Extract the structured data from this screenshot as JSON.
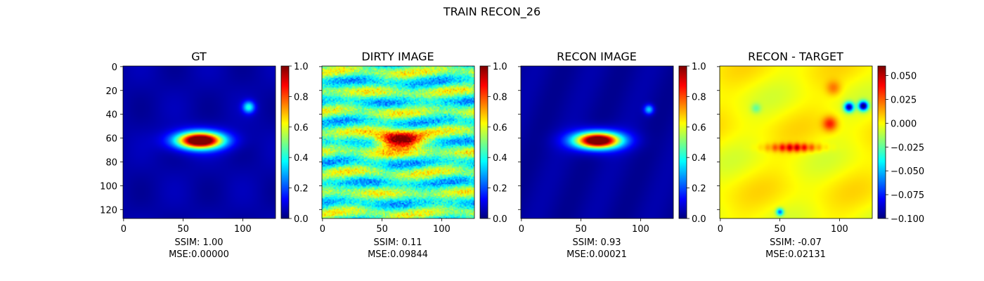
{
  "figure": {
    "suptitle": "TRAIN RECON_26"
  },
  "chart_data": [
    {
      "type": "heatmap",
      "title": "GT",
      "colormap": "jet",
      "image_size": [
        128,
        128
      ],
      "x_ticks": [
        0,
        50,
        100
      ],
      "y_ticks": [
        0,
        20,
        40,
        60,
        80,
        100,
        120
      ],
      "colorbar": {
        "range": [
          0.0,
          1.0
        ],
        "ticks": [
          "0.0",
          "0.2",
          "0.4",
          "0.6",
          "0.8",
          "1.0"
        ]
      },
      "caption_ssim": "SSIM: 1.00",
      "caption_mse": "MSE:0.00000",
      "content": "ground_truth"
    },
    {
      "type": "heatmap",
      "title": "DIRTY IMAGE",
      "colormap": "jet",
      "image_size": [
        128,
        128
      ],
      "x_ticks": [
        0,
        50,
        100
      ],
      "colorbar": {
        "range": [
          0.0,
          1.0
        ],
        "ticks": [
          "0.0",
          "0.2",
          "0.4",
          "0.6",
          "0.8",
          "1.0"
        ]
      },
      "caption_ssim": "SSIM: 0.11",
      "caption_mse": "MSE:0.09844",
      "content": "dirty"
    },
    {
      "type": "heatmap",
      "title": "RECON IMAGE",
      "colormap": "jet",
      "image_size": [
        128,
        128
      ],
      "x_ticks": [
        0,
        50,
        100
      ],
      "colorbar": {
        "range": [
          0.0,
          1.0
        ],
        "ticks": [
          "0.0",
          "0.2",
          "0.4",
          "0.6",
          "0.8",
          "1.0"
        ]
      },
      "caption_ssim": "SSIM: 0.93",
      "caption_mse": "MSE:0.00021",
      "content": "reconstruction"
    },
    {
      "type": "heatmap",
      "title": "RECON - TARGET",
      "colormap": "jet",
      "image_size": [
        128,
        128
      ],
      "x_ticks": [
        0,
        50,
        100
      ],
      "colorbar": {
        "range": [
          -0.1,
          0.06
        ],
        "ticks": [
          "−0.100",
          "−0.075",
          "−0.050",
          "−0.025",
          "0.000",
          "0.025",
          "0.050"
        ]
      },
      "caption_ssim": "SSIM: -0.07",
      "caption_mse": "MSE:0.02131",
      "content": "residual"
    }
  ]
}
